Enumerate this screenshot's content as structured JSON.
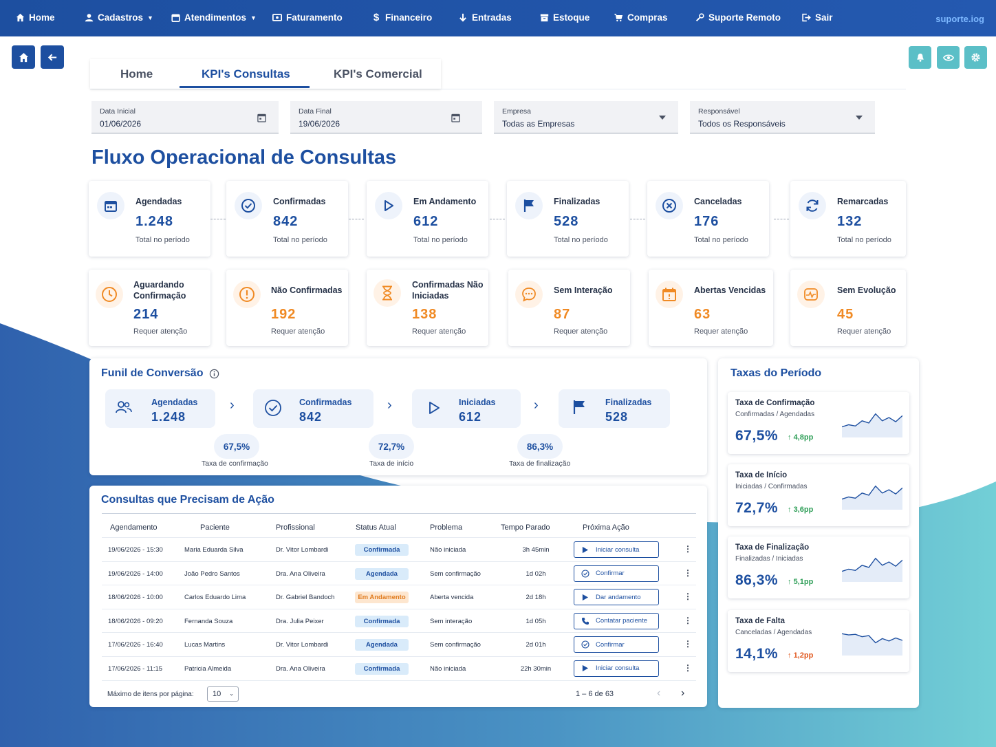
{
  "colors": {
    "primary": "#1d4fa0",
    "accent_teal": "#5bbfc7",
    "warning": "#f08a24",
    "positive": "#2e9e57",
    "negative": "#e0561c"
  },
  "nav": {
    "items": [
      {
        "label": "Home",
        "icon": "home-icon"
      },
      {
        "label": "Cadastros",
        "icon": "user-icon",
        "dropdown": true
      },
      {
        "label": "Atendimentos",
        "icon": "calendar-icon",
        "dropdown": true
      },
      {
        "label": "Faturamento",
        "icon": "money-icon"
      },
      {
        "label": "Financeiro",
        "icon": "dollar-icon"
      },
      {
        "label": "Entradas",
        "icon": "arrow-down-icon"
      },
      {
        "label": "Estoque",
        "icon": "box-icon"
      },
      {
        "label": "Compras",
        "icon": "cart-icon"
      },
      {
        "label": "Suporte Remoto",
        "icon": "wrench-icon"
      },
      {
        "label": "Sair",
        "icon": "logout-icon"
      }
    ],
    "site": "suporte.iog"
  },
  "tabs": [
    {
      "label": "Home"
    },
    {
      "label": "KPI's Consultas",
      "active": true
    },
    {
      "label": "KPI's Comercial"
    }
  ],
  "filters": {
    "data_inicial": {
      "label": "Data Inicial",
      "value": "01/06/2026"
    },
    "data_final": {
      "label": "Data Final",
      "value": "19/06/2026"
    },
    "empresa": {
      "label": "Empresa",
      "value": "Todas as Empresas"
    },
    "responsavel": {
      "label": "Responsável",
      "value": "Todos os Responsáveis"
    }
  },
  "page_title": "Fluxo Operacional de Consultas",
  "kpis_flow": [
    {
      "title": "Agendadas",
      "value": "1.248",
      "sub": "Total no período",
      "icon": "calendar-icon"
    },
    {
      "title": "Confirmadas",
      "value": "842",
      "sub": "Total no período",
      "icon": "check-circle-icon"
    },
    {
      "title": "Em Andamento",
      "value": "612",
      "sub": "Total no período",
      "icon": "play-icon"
    },
    {
      "title": "Finalizadas",
      "value": "528",
      "sub": "Total no período",
      "icon": "flag-icon"
    },
    {
      "title": "Canceladas",
      "value": "176",
      "sub": "Total no período",
      "icon": "x-circle-icon"
    },
    {
      "title": "Remarcadas",
      "value": "132",
      "sub": "Total no período",
      "icon": "refresh-icon"
    }
  ],
  "kpis_attention": [
    {
      "title": "Aguardando Confirmação",
      "value": "214",
      "sub": "Requer atenção",
      "icon": "clock-icon",
      "tone": "blue"
    },
    {
      "title": "Não Confirmadas",
      "value": "192",
      "sub": "Requer atenção",
      "icon": "alert-icon",
      "tone": "orange"
    },
    {
      "title": "Confirmadas Não Iniciadas",
      "value": "138",
      "sub": "Requer atenção",
      "icon": "hourglass-icon",
      "tone": "orange"
    },
    {
      "title": "Sem Interação",
      "value": "87",
      "sub": "Requer atenção",
      "icon": "chat-icon",
      "tone": "orange"
    },
    {
      "title": "Abertas Vencidas",
      "value": "63",
      "sub": "Requer atenção",
      "icon": "calendar-alert-icon",
      "tone": "orange"
    },
    {
      "title": "Sem Evolução",
      "value": "45",
      "sub": "Requer atenção",
      "icon": "pulse-icon",
      "tone": "orange"
    }
  ],
  "funnel": {
    "title": "Funil de Conversão",
    "stages": [
      {
        "label": "Agendadas",
        "value": "1.248",
        "icon": "users-icon"
      },
      {
        "label": "Confirmadas",
        "value": "842",
        "icon": "check-circle-icon"
      },
      {
        "label": "Iniciadas",
        "value": "612",
        "icon": "play-icon"
      },
      {
        "label": "Finalizadas",
        "value": "528",
        "icon": "flag-icon"
      }
    ],
    "rates": [
      {
        "value": "67,5%",
        "label": "Taxa de confirmação"
      },
      {
        "value": "72,7%",
        "label": "Taxa de início"
      },
      {
        "value": "86,3%",
        "label": "Taxa de finalização"
      }
    ]
  },
  "table": {
    "title": "Consultas que Precisam de Ação",
    "headers": [
      "Agendamento",
      "Paciente",
      "Profissional",
      "Status Atual",
      "Problema",
      "Tempo Parado",
      "Próxima Ação"
    ],
    "rows": [
      {
        "date": "19/06/2026 - 15:30",
        "patient": "Maria Eduarda Silva",
        "pro": "Dr. Vitor Lombardi",
        "status": "Confirmada",
        "status_kind": "conf",
        "problem": "Não iniciada",
        "time": "3h 45min",
        "action": "Iniciar consulta",
        "action_icon": "play-icon"
      },
      {
        "date": "19/06/2026 - 14:00",
        "patient": "João Pedro Santos",
        "pro": "Dra. Ana Oliveira",
        "status": "Agendada",
        "status_kind": "agen",
        "problem": "Sem confirmação",
        "time": "1d 02h",
        "action": "Confirmar",
        "action_icon": "check-circle-icon"
      },
      {
        "date": "18/06/2026 - 10:00",
        "patient": "Carlos Eduardo Lima",
        "pro": "Dr. Gabriel Bandoch",
        "status": "Em Andamento",
        "status_kind": "and",
        "problem": "Aberta vencida",
        "time": "2d 18h",
        "action": "Dar andamento",
        "action_icon": "play-icon"
      },
      {
        "date": "18/06/2026 - 09:20",
        "patient": "Fernanda Souza",
        "pro": "Dra. Julia Peixer",
        "status": "Confirmada",
        "status_kind": "conf",
        "problem": "Sem interação",
        "time": "1d 05h",
        "action": "Contatar paciente",
        "action_icon": "phone-icon"
      },
      {
        "date": "17/06/2026 - 16:40",
        "patient": "Lucas Martins",
        "pro": "Dr. Vitor Lombardi",
        "status": "Agendada",
        "status_kind": "agen",
        "problem": "Sem confirmação",
        "time": "2d 01h",
        "action": "Confirmar",
        "action_icon": "check-circle-icon"
      },
      {
        "date": "17/06/2026 - 11:15",
        "patient": "Patricia Almeida",
        "pro": "Dra. Ana Oliveira",
        "status": "Confirmada",
        "status_kind": "conf",
        "problem": "Não iniciada",
        "time": "22h 30min",
        "action": "Iniciar consulta",
        "action_icon": "play-icon"
      }
    ],
    "page_size_label": "Máximo de itens por página:",
    "page_size": "10",
    "range": "1 – 6 de 63"
  },
  "rates": {
    "title": "Taxas do Período",
    "cards": [
      {
        "title": "Taxa de Confirmação",
        "sub": "Confirmadas / Agendadas",
        "value": "67,5%",
        "delta": "4,8pp",
        "trend": "up",
        "spark": [
          0.35,
          0.42,
          0.38,
          0.55,
          0.48,
          0.78,
          0.55,
          0.66,
          0.52,
          0.72
        ]
      },
      {
        "title": "Taxa de Início",
        "sub": "Iniciadas / Confirmadas",
        "value": "72,7%",
        "delta": "3,6pp",
        "trend": "up",
        "spark": [
          0.35,
          0.42,
          0.38,
          0.55,
          0.48,
          0.78,
          0.55,
          0.66,
          0.52,
          0.72
        ]
      },
      {
        "title": "Taxa de Finalização",
        "sub": "Finalizadas / Iniciadas",
        "value": "86,3%",
        "delta": "5,1pp",
        "trend": "up",
        "spark": [
          0.35,
          0.42,
          0.38,
          0.55,
          0.48,
          0.78,
          0.55,
          0.66,
          0.52,
          0.72
        ]
      },
      {
        "title": "Taxa de Falta",
        "sub": "Canceladas / Agendadas",
        "value": "14,1%",
        "delta": "1,2pp",
        "trend": "up-bad",
        "spark": [
          0.72,
          0.68,
          0.7,
          0.62,
          0.66,
          0.42,
          0.56,
          0.48,
          0.58,
          0.5
        ]
      }
    ]
  }
}
